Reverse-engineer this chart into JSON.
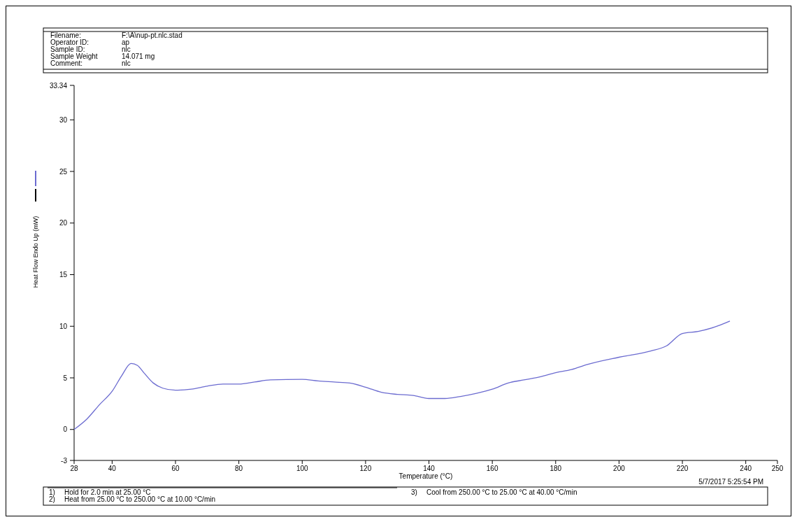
{
  "chart_data": {
    "type": "line",
    "xlabel": "Temperature (°C)",
    "ylabel": "Heat Flow Endo Up (mW)",
    "xlim": [
      28,
      250
    ],
    "xticks": [
      28,
      40,
      60,
      80,
      100,
      120,
      140,
      160,
      180,
      200,
      220,
      240,
      250
    ],
    "ylim": [
      -3,
      33.34
    ],
    "yticks": [
      -3,
      0,
      5,
      10,
      15,
      20,
      25,
      30,
      33.34
    ],
    "grid": false,
    "annotations": [
      "Filename:\tF:\\A\\nup-pt.nlc.stad",
      "Operator ID:\tap",
      "Sample ID:\tnlc",
      "Sample Weight\t14.071 mg",
      "Comment:\tnlc",
      "1)\tHold for 2.0 min at 25.00 °C",
      "2)\tHeat from 25.00 °C to 250.00 °C at 10.00 °C/min",
      "3)\tCool from 250.00 °C to 25.00 °C at 40.00 °C/min",
      "5/7/2017 5:25:54 PM"
    ],
    "series": [
      {
        "color": "#6b6bd0",
        "x": [
          28,
          32,
          36,
          40,
          43,
          46,
          48,
          50,
          53,
          56,
          60,
          65,
          70,
          75,
          80,
          85,
          90,
          100,
          105,
          110,
          115,
          120,
          125,
          130,
          135,
          140,
          145,
          150,
          155,
          160,
          165,
          170,
          175,
          180,
          185,
          190,
          200,
          210,
          215,
          220,
          225,
          230,
          235
        ],
        "values": [
          0,
          1.0,
          2.4,
          3.7,
          5.2,
          6.4,
          6.2,
          5.5,
          4.5,
          4.0,
          3.8,
          3.9,
          4.2,
          4.4,
          4.4,
          4.6,
          4.8,
          4.85,
          4.7,
          4.6,
          4.5,
          4.1,
          3.6,
          3.4,
          3.3,
          3.0,
          3.0,
          3.2,
          3.5,
          3.9,
          4.5,
          4.8,
          5.1,
          5.5,
          5.8,
          6.3,
          7.0,
          7.6,
          8.1,
          9.3,
          9.5,
          9.9,
          10.5
        ]
      }
    ]
  }
}
